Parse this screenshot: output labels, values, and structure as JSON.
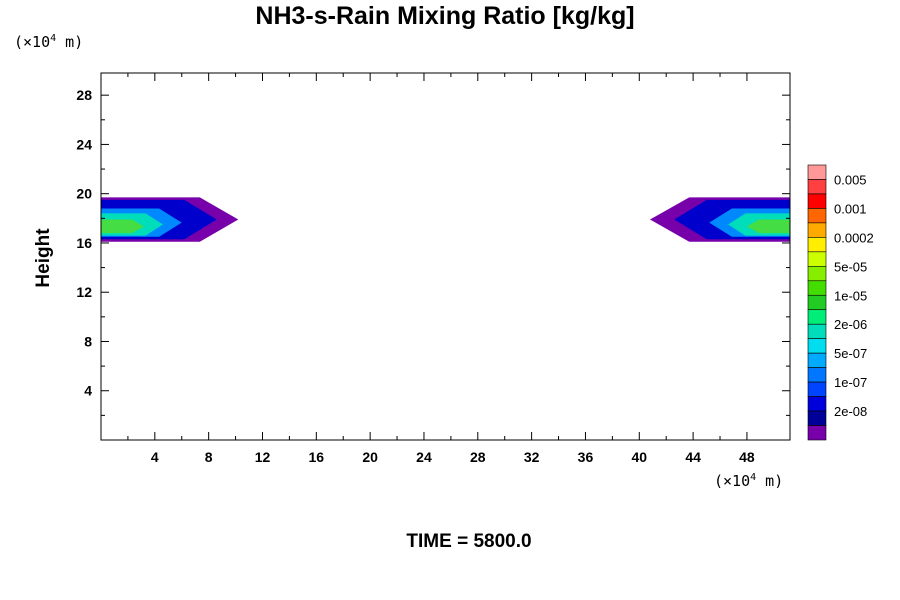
{
  "chart_data": {
    "type": "contour",
    "title": "NH3-s-Rain Mixing Ratio [kg/kg]",
    "xlabel": "",
    "ylabel": "Height",
    "x_unit": {
      "prefix": "(×10",
      "exp": "4",
      "suffix": " m)"
    },
    "y_unit": {
      "prefix": "(×10",
      "exp": "4",
      "suffix": " m)"
    },
    "xlim": [
      0,
      51.2
    ],
    "ylim": [
      0,
      29.8
    ],
    "x_ticks": [
      4,
      8,
      12,
      16,
      20,
      24,
      28,
      32,
      36,
      40,
      44,
      48
    ],
    "y_ticks": [
      4,
      8,
      12,
      16,
      20,
      24,
      28
    ],
    "footer": "TIME = 5800.0",
    "colorbar": {
      "labels": [
        "0.005",
        "0.001",
        "0.0002",
        "5e-05",
        "1e-05",
        "2e-06",
        "5e-07",
        "1e-07",
        "2e-08"
      ],
      "colors": [
        "#ff9999",
        "#ff4040",
        "#ff0000",
        "#ff6600",
        "#ffaa00",
        "#ffee00",
        "#ccff00",
        "#88ee00",
        "#44dd00",
        "#22cc22",
        "#00ee77",
        "#00ddbb",
        "#00ddee",
        "#00aaff",
        "#0077ff",
        "#0044ff",
        "#0000dd",
        "#000099",
        "#7700aa"
      ]
    },
    "regions": [
      {
        "side": "left",
        "layers": [
          {
            "color": "#7700aa",
            "y0": 16.1,
            "y1": 19.7,
            "xmax": 10.2
          },
          {
            "color": "#0000cc",
            "y0": 16.3,
            "y1": 19.5,
            "xmax": 8.6
          },
          {
            "color": "#0088ff",
            "y0": 16.5,
            "y1": 18.8,
            "xmax": 6.0
          },
          {
            "color": "#00ddbb",
            "y0": 16.6,
            "y1": 18.4,
            "xmax": 4.6
          },
          {
            "color": "#44dd44",
            "y0": 16.8,
            "y1": 17.9,
            "xmax": 3.2
          }
        ]
      },
      {
        "side": "right",
        "layers": [
          {
            "color": "#7700aa",
            "y0": 16.1,
            "y1": 19.7,
            "xmin": 40.8
          },
          {
            "color": "#0000cc",
            "y0": 16.3,
            "y1": 19.5,
            "xmin": 42.6
          },
          {
            "color": "#0088ff",
            "y0": 16.5,
            "y1": 18.8,
            "xmin": 45.2
          },
          {
            "color": "#00ddbb",
            "y0": 16.6,
            "y1": 18.4,
            "xmin": 46.6
          },
          {
            "color": "#44dd44",
            "y0": 16.8,
            "y1": 17.9,
            "xmin": 48.0
          }
        ]
      }
    ]
  }
}
